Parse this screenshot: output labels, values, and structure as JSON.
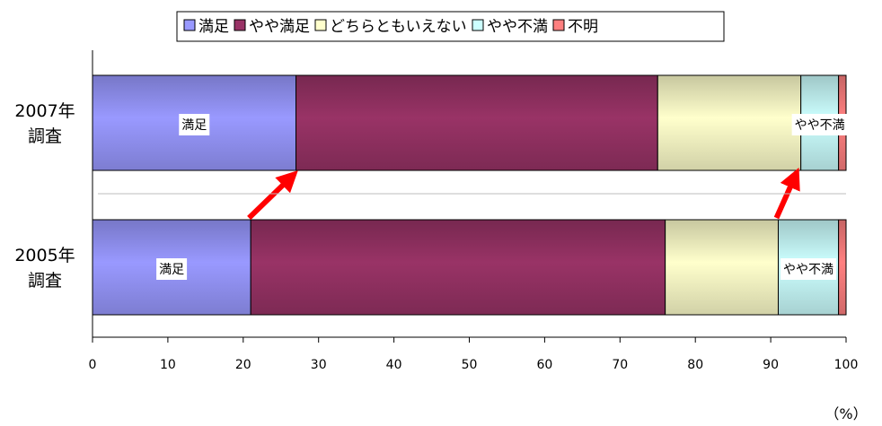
{
  "chart_data": {
    "type": "bar",
    "orientation": "horizontal",
    "stacked": true,
    "categories": [
      [
        "2007年",
        "調査"
      ],
      [
        "2005年",
        "調査"
      ]
    ],
    "series": [
      {
        "name": "満足",
        "color": "#9999ff",
        "values": [
          27,
          21
        ]
      },
      {
        "name": "やや満足",
        "color": "#993366",
        "values": [
          48,
          55
        ]
      },
      {
        "name": "どちらともいえない",
        "color": "#ffffcc",
        "values": [
          19,
          15
        ]
      },
      {
        "name": "やや不満",
        "color": "#ccffff",
        "values": [
          5,
          8
        ]
      },
      {
        "name": "不明",
        "color": "#ff8080",
        "values": [
          1,
          1
        ]
      }
    ],
    "xlim": [
      0,
      100
    ],
    "xticks": [
      0,
      10,
      20,
      30,
      40,
      50,
      60,
      70,
      80,
      90,
      100
    ],
    "unit_label": "（%）",
    "legend_position": "top",
    "grid": false,
    "annotations": [
      {
        "text": "満足",
        "category": 0,
        "series": 0
      },
      {
        "text": "やや不満",
        "category": 0,
        "series": 3
      },
      {
        "text": "満足",
        "category": 1,
        "series": 0
      },
      {
        "text": "やや不満",
        "category": 1,
        "series": 3
      }
    ],
    "arrows": [
      {
        "from": {
          "category": 1,
          "x": 21
        },
        "to": {
          "category": 0,
          "x": 27
        },
        "color": "#ff0000"
      },
      {
        "from": {
          "category": 1,
          "x": 91
        },
        "to": {
          "category": 0,
          "x": 94
        },
        "color": "#ff0000"
      }
    ]
  }
}
